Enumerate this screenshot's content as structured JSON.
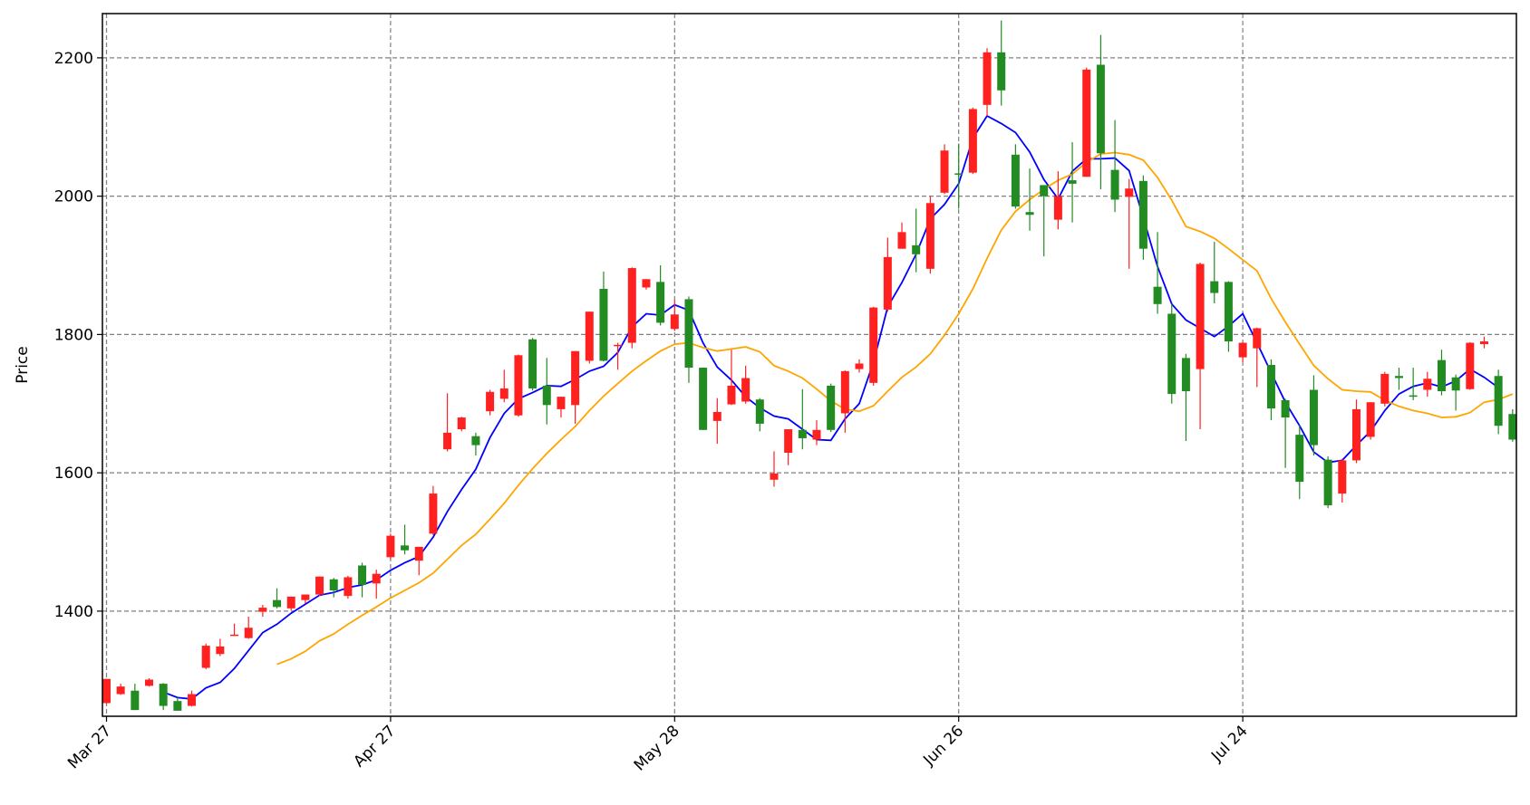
{
  "chart_data": {
    "type": "candlestick",
    "title": "",
    "xlabel": "",
    "ylabel": "Price",
    "ylim": [
      1248,
      2264
    ],
    "yticks": [
      1400,
      1600,
      1800,
      2000,
      2200
    ],
    "xticks": [
      {
        "label": "Mar 27",
        "index": 0
      },
      {
        "label": "Apr 27",
        "index": 20
      },
      {
        "label": "May 28",
        "index": 40
      },
      {
        "label": "Jun 26",
        "index": 60
      },
      {
        "label": "Jul 24",
        "index": 80
      }
    ],
    "grid": true,
    "up_color": "#228B22",
    "down_color": "#FF2020",
    "ohlc": [
      [
        1302,
        1302,
        1266,
        1267
      ],
      [
        1291,
        1295,
        1279,
        1280
      ],
      [
        1257,
        1295,
        1257,
        1285
      ],
      [
        1301,
        1303,
        1291,
        1292
      ],
      [
        1263,
        1296,
        1257,
        1295
      ],
      [
        1256,
        1275,
        1256,
        1270
      ],
      [
        1280,
        1285,
        1262,
        1263
      ],
      [
        1350,
        1353,
        1316,
        1318
      ],
      [
        1349,
        1360,
        1335,
        1338
      ],
      [
        1366,
        1382,
        1364,
        1365
      ],
      [
        1376,
        1392,
        1360,
        1361
      ],
      [
        1405,
        1409,
        1392,
        1399
      ],
      [
        1406,
        1433,
        1404,
        1416
      ],
      [
        1421,
        1421,
        1401,
        1404
      ],
      [
        1424,
        1424,
        1411,
        1416
      ],
      [
        1450,
        1450,
        1422,
        1424
      ],
      [
        1430,
        1448,
        1420,
        1446
      ],
      [
        1449,
        1451,
        1418,
        1422
      ],
      [
        1438,
        1470,
        1420,
        1466
      ],
      [
        1454,
        1460,
        1418,
        1440
      ],
      [
        1509,
        1512,
        1475,
        1478
      ],
      [
        1488,
        1525,
        1482,
        1495
      ],
      [
        1493,
        1493,
        1452,
        1473
      ],
      [
        1570,
        1581,
        1510,
        1512
      ],
      [
        1658,
        1715,
        1631,
        1634
      ],
      [
        1680,
        1681,
        1660,
        1663
      ],
      [
        1640,
        1658,
        1625,
        1653
      ],
      [
        1717,
        1720,
        1683,
        1689
      ],
      [
        1722,
        1749,
        1702,
        1707
      ],
      [
        1770,
        1771,
        1681,
        1683
      ],
      [
        1722,
        1795,
        1719,
        1793
      ],
      [
        1698,
        1766,
        1670,
        1726
      ],
      [
        1710,
        1710,
        1680,
        1692
      ],
      [
        1776,
        1776,
        1671,
        1698
      ],
      [
        1833,
        1833,
        1758,
        1762
      ],
      [
        1762,
        1891,
        1761,
        1866
      ],
      [
        1785,
        1788,
        1749,
        1784
      ],
      [
        1896,
        1897,
        1780,
        1788
      ],
      [
        1880,
        1880,
        1865,
        1868
      ],
      [
        1817,
        1900,
        1813,
        1876
      ],
      [
        1829,
        1850,
        1805,
        1808
      ],
      [
        1752,
        1855,
        1730,
        1851
      ],
      [
        1662,
        1752,
        1662,
        1752
      ],
      [
        1688,
        1708,
        1642,
        1675
      ],
      [
        1726,
        1778,
        1698,
        1699
      ],
      [
        1737,
        1755,
        1700,
        1703
      ],
      [
        1671,
        1708,
        1660,
        1706
      ],
      [
        1599,
        1631,
        1580,
        1590
      ],
      [
        1663,
        1663,
        1611,
        1629
      ],
      [
        1650,
        1721,
        1634,
        1662
      ],
      [
        1662,
        1676,
        1640,
        1648
      ],
      [
        1662,
        1729,
        1659,
        1726
      ],
      [
        1747,
        1748,
        1658,
        1686
      ],
      [
        1758,
        1764,
        1745,
        1750
      ],
      [
        1839,
        1840,
        1726,
        1730
      ],
      [
        1912,
        1940,
        1833,
        1836
      ],
      [
        1948,
        1962,
        1924,
        1924
      ],
      [
        1916,
        1982,
        1890,
        1929
      ],
      [
        1990,
        2000,
        1888,
        1895
      ],
      [
        2066,
        2075,
        2003,
        2005
      ],
      [
        2032,
        2076,
        1982,
        2033
      ],
      [
        2126,
        2128,
        2032,
        2034
      ],
      [
        2208,
        2214,
        2116,
        2132
      ],
      [
        2153,
        2254,
        2131,
        2208
      ],
      [
        1985,
        2075,
        1982,
        2060
      ],
      [
        1973,
        2040,
        1950,
        1977
      ],
      [
        2000,
        2011,
        1913,
        2016
      ],
      [
        2000,
        2036,
        1952,
        1966
      ],
      [
        2018,
        2078,
        1962,
        2023
      ],
      [
        2183,
        2186,
        2028,
        2028
      ],
      [
        2062,
        2233,
        2010,
        2190
      ],
      [
        1995,
        2110,
        1977,
        2038
      ],
      [
        2011,
        2025,
        1895,
        1999
      ],
      [
        1924,
        2030,
        1908,
        2022
      ],
      [
        1844,
        1948,
        1830,
        1869
      ],
      [
        1714,
        1844,
        1700,
        1830
      ],
      [
        1718,
        1772,
        1646,
        1766
      ],
      [
        1902,
        1904,
        1663,
        1750
      ],
      [
        1860,
        1934,
        1845,
        1877
      ],
      [
        1790,
        1877,
        1775,
        1876
      ],
      [
        1788,
        1789,
        1760,
        1767
      ],
      [
        1809,
        1810,
        1724,
        1780
      ],
      [
        1693,
        1764,
        1676,
        1756
      ],
      [
        1680,
        1707,
        1607,
        1705
      ],
      [
        1587,
        1669,
        1562,
        1655
      ],
      [
        1640,
        1741,
        1625,
        1720
      ],
      [
        1553,
        1624,
        1549,
        1619
      ],
      [
        1618,
        1620,
        1557,
        1570
      ],
      [
        1692,
        1706,
        1614,
        1618
      ],
      [
        1702,
        1702,
        1648,
        1652
      ],
      [
        1743,
        1746,
        1696,
        1700
      ],
      [
        1737,
        1752,
        1720,
        1740
      ],
      [
        1710,
        1752,
        1705,
        1712
      ],
      [
        1736,
        1746,
        1710,
        1720
      ],
      [
        1718,
        1778,
        1712,
        1763
      ],
      [
        1719,
        1742,
        1690,
        1738
      ],
      [
        1788,
        1789,
        1720,
        1721
      ],
      [
        1790,
        1797,
        1780,
        1786
      ],
      [
        1668,
        1749,
        1656,
        1740
      ],
      [
        1648,
        1692,
        1645,
        1685
      ]
    ],
    "series": [
      {
        "color": "#0000FF",
        "start_index": 4,
        "values": [
          1283,
          1275,
          1273,
          1289,
          1297,
          1317,
          1343,
          1369,
          1381,
          1397,
          1410,
          1423,
          1427,
          1434,
          1438,
          1445,
          1459,
          1470,
          1479,
          1507,
          1544,
          1576,
          1605,
          1651,
          1686,
          1707,
          1716,
          1726,
          1725,
          1735,
          1747,
          1754,
          1774,
          1811,
          1830,
          1828,
          1843,
          1835,
          1788,
          1753,
          1734,
          1710,
          1694,
          1682,
          1678,
          1663,
          1648,
          1647,
          1678,
          1700,
          1760,
          1840,
          1875,
          1916,
          1967,
          1988,
          2018,
          2084,
          2116,
          2105,
          2092,
          2064,
          2024,
          1996,
          2036,
          2054,
          2054,
          2055,
          2037,
          1969,
          1898,
          1844,
          1821,
          1809,
          1797,
          1812,
          1830,
          1788,
          1745,
          1702,
          1668,
          1630,
          1615,
          1618,
          1640,
          1660,
          1690,
          1714,
          1725,
          1730,
          1724,
          1733,
          1750,
          1738,
          1723
        ]
      },
      {
        "color": "#FFA500",
        "start_index": 12,
        "values": [
          1323,
          1331,
          1342,
          1357,
          1367,
          1381,
          1394,
          1406,
          1419,
          1430,
          1441,
          1455,
          1475,
          1495,
          1511,
          1533,
          1556,
          1582,
          1606,
          1628,
          1648,
          1667,
          1690,
          1711,
          1729,
          1747,
          1762,
          1776,
          1786,
          1788,
          1781,
          1776,
          1779,
          1782,
          1775,
          1755,
          1747,
          1737,
          1721,
          1704,
          1692,
          1689,
          1697,
          1718,
          1738,
          1753,
          1772,
          1799,
          1830,
          1866,
          1910,
          1951,
          1978,
          1995,
          2010,
          2023,
          2032,
          2049,
          2061,
          2063,
          2060,
          2052,
          2027,
          1994,
          1956,
          1949,
          1939,
          1924,
          1908,
          1892,
          1852,
          1818,
          1786,
          1755,
          1736,
          1720,
          1718,
          1717,
          1705,
          1696,
          1690,
          1686,
          1680,
          1681,
          1687,
          1702,
          1706,
          1714
        ]
      }
    ]
  }
}
